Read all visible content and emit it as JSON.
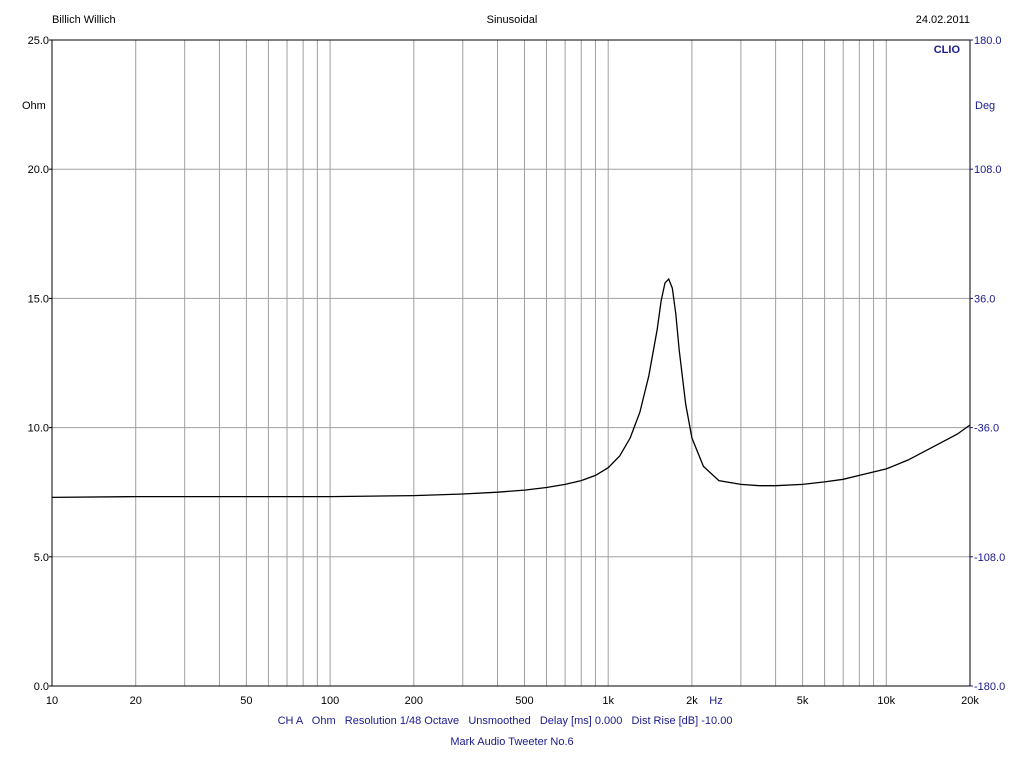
{
  "header": {
    "left": "Billich Willich",
    "center": "Sinusoidal",
    "right": "24.02.2011"
  },
  "brand": "CLIO",
  "footer": {
    "settings": "CH A   Ohm   Resolution 1/48 Octave   Unsmoothed   Delay [ms] 0.000   Dist Rise [dB] -10.00",
    "caption": "Mark Audio Tweeter No.6"
  },
  "colors": {
    "left_axis": "#000000",
    "right_axis": "#1a1a8c",
    "grid": "#a0a0a0",
    "curve": "#000000"
  },
  "chart_data": {
    "type": "line",
    "x_scale": "log",
    "xlim": [
      10,
      20000
    ],
    "ylim": [
      0,
      25
    ],
    "y2lim": [
      -180,
      180
    ],
    "ylabel": "Ohm",
    "y2label": "Deg",
    "x_unit_label": "Hz",
    "x_tick_labels": [
      {
        "v": 10,
        "label": "10"
      },
      {
        "v": 20,
        "label": "20"
      },
      {
        "v": 50,
        "label": "50"
      },
      {
        "v": 100,
        "label": "100"
      },
      {
        "v": 200,
        "label": "200"
      },
      {
        "v": 500,
        "label": "500"
      },
      {
        "v": 1000,
        "label": "1k"
      },
      {
        "v": 2000,
        "label": "2k"
      },
      {
        "v": 5000,
        "label": "5k"
      },
      {
        "v": 10000,
        "label": "10k"
      },
      {
        "v": 20000,
        "label": "20k"
      }
    ],
    "y_ticks": [
      {
        "v": 0,
        "label": "0.0"
      },
      {
        "v": 5,
        "label": "5.0"
      },
      {
        "v": 10,
        "label": "10.0"
      },
      {
        "v": 15,
        "label": "15.0"
      },
      {
        "v": 20,
        "label": "20.0"
      },
      {
        "v": 25,
        "label": "25.0"
      }
    ],
    "y2_ticks": [
      {
        "v": -180,
        "label": "-180.0"
      },
      {
        "v": -108,
        "label": "-108.0"
      },
      {
        "v": -36,
        "label": "-36.0"
      },
      {
        "v": 36,
        "label": "36.0"
      },
      {
        "v": 108,
        "label": "108.0"
      },
      {
        "v": 180,
        "label": "180.0"
      }
    ],
    "grid": true,
    "series": [
      {
        "x": [
          10,
          20,
          50,
          100,
          200,
          300,
          400,
          500,
          600,
          700,
          800,
          900,
          1000,
          1100,
          1200,
          1300,
          1400,
          1500,
          1550,
          1600,
          1650,
          1700,
          1750,
          1800,
          1900,
          2000,
          2200,
          2500,
          3000,
          3500,
          4000,
          5000,
          6000,
          7000,
          8000,
          10000,
          12000,
          15000,
          18000,
          20000
        ],
        "y": [
          7.3,
          7.33,
          7.33,
          7.33,
          7.37,
          7.43,
          7.5,
          7.58,
          7.68,
          7.8,
          7.95,
          8.15,
          8.45,
          8.9,
          9.6,
          10.6,
          12.0,
          13.8,
          14.9,
          15.6,
          15.75,
          15.4,
          14.4,
          13.0,
          10.9,
          9.6,
          8.5,
          7.95,
          7.8,
          7.75,
          7.75,
          7.8,
          7.9,
          8.0,
          8.15,
          8.4,
          8.75,
          9.3,
          9.75,
          10.1
        ]
      }
    ]
  }
}
